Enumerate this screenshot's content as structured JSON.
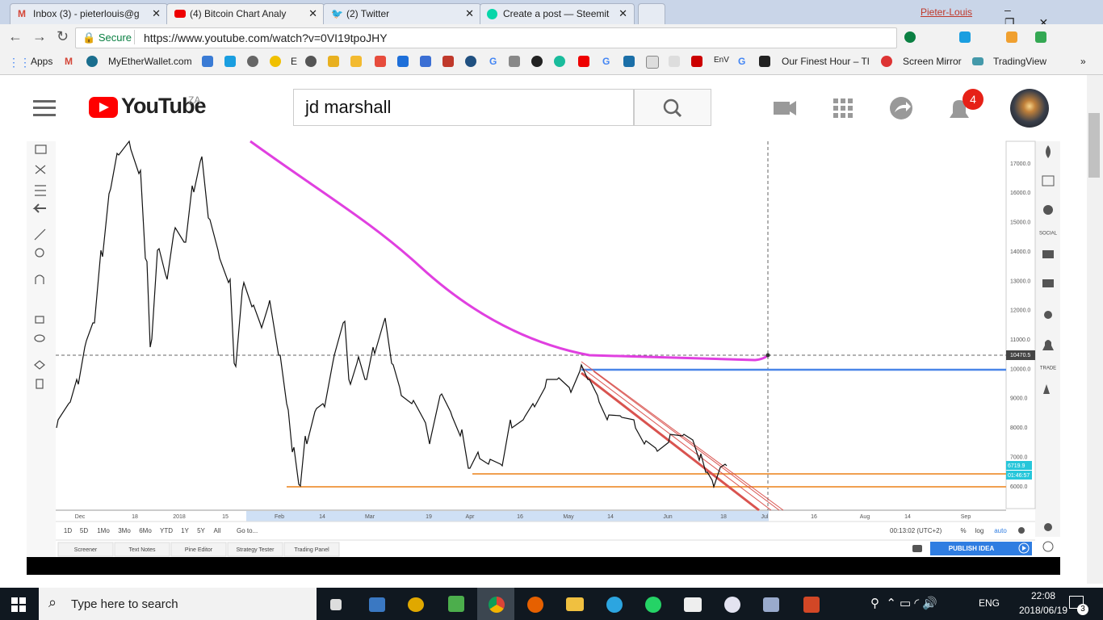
{
  "browser": {
    "tabs": [
      "Inbox (3) - pieterlouis@g",
      "(4) Bitcoin Chart Analy",
      "(2) Twitter",
      "Create a post — Steemit"
    ],
    "profile": "Pieter-Louis",
    "security": "Secure",
    "url": "https://www.youtube.com/watch?v=0VI19tpoJHY",
    "bookmarks": [
      "Apps",
      "MyEtherWallet.com",
      "E",
      "G",
      "G",
      "EnV",
      "G",
      "Our Finest Hour – Th",
      "Screen Mirror",
      "TradingView"
    ]
  },
  "youtube": {
    "logo": "YouTube",
    "region": "ZA",
    "search_query": "jd marshall",
    "notifications": 4
  },
  "chart": {
    "yticks": [
      "17000.0",
      "16000.0",
      "15000.0",
      "14000.0",
      "13000.0",
      "12000.0",
      "11000.0",
      "10000.0",
      "9000.0",
      "8000.0",
      "7000.0",
      "6000.0"
    ],
    "price_labels": [
      "10470.5",
      "6719.9",
      "01:46:57"
    ],
    "xticks": [
      "Dec",
      "18",
      "2018",
      "15",
      "Feb",
      "14",
      "Mar",
      "19",
      "Apr",
      "16",
      "May",
      "14",
      "Jun",
      "18",
      "Jul",
      "16",
      "Aug",
      "14",
      "Sep"
    ],
    "ranges": [
      "1D",
      "5D",
      "1Mo",
      "3Mo",
      "6Mo",
      "YTD",
      "1Y",
      "5Y",
      "All"
    ],
    "goto": "Go to...",
    "clock": "00:13:02 (UTC+2)",
    "scale_options": [
      "%",
      "log",
      "auto"
    ],
    "panels": [
      "Screener",
      "Text Notes",
      "Pine Editor",
      "Strategy Tester",
      "Trading Panel"
    ],
    "publish": "PUBLISH IDEA",
    "side_labels": [
      "SOCIAL",
      "TRADE"
    ]
  },
  "taskbar": {
    "search": "Type here to search",
    "language": "ENG",
    "time": "22:08",
    "date": "2018/06/19",
    "notifications": 3
  }
}
